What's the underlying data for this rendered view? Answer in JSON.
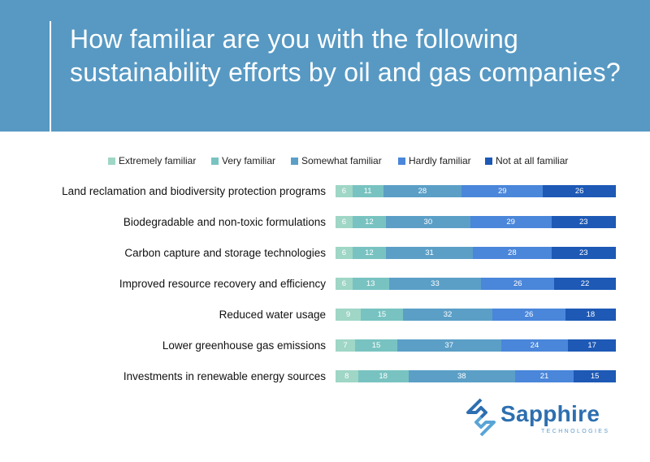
{
  "header": {
    "title": "How familiar are you with the following sustainability efforts by oil and gas companies?"
  },
  "colors": {
    "header_bg": "#5799c3",
    "Extremely familiar": "#9fd6c6",
    "Very familiar": "#78c3c1",
    "Somewhat familiar": "#5b9fc7",
    "Hardly familiar": "#4a86da",
    "Not at all familiar": "#1d59b5"
  },
  "chart_data": {
    "type": "bar",
    "orientation": "horizontal",
    "stacked": "100%",
    "categories": [
      "Land reclamation and biodiversity protection programs",
      "Biodegradable and non-toxic formulations",
      "Carbon capture and storage technologies",
      "Improved resource recovery and efficiency",
      "Reduced water usage",
      "Lower greenhouse gas emissions",
      "Investments in renewable energy sources"
    ],
    "series": [
      {
        "name": "Extremely familiar",
        "values": [
          6,
          6,
          6,
          6,
          9,
          7,
          8
        ]
      },
      {
        "name": "Very familiar",
        "values": [
          11,
          12,
          12,
          13,
          15,
          15,
          18
        ]
      },
      {
        "name": "Somewhat familiar",
        "values": [
          28,
          30,
          31,
          33,
          32,
          37,
          38
        ]
      },
      {
        "name": "Hardly familiar",
        "values": [
          29,
          29,
          28,
          26,
          26,
          24,
          21
        ]
      },
      {
        "name": "Not at all familiar",
        "values": [
          26,
          23,
          23,
          22,
          18,
          17,
          15
        ]
      }
    ],
    "legend_position": "top",
    "grid": false
  },
  "logo": {
    "name": "Sapphire",
    "tagline": "TECHNOLOGIES"
  }
}
